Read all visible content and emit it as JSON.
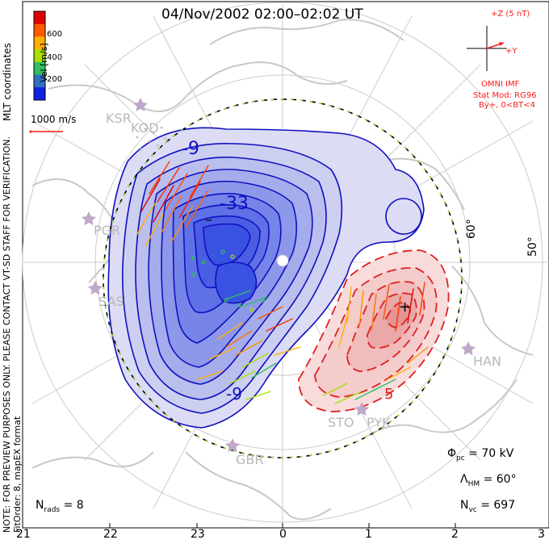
{
  "title": "04/Nov/2002 02:00–02:02 UT",
  "imf": {
    "z_label": "+Z (5 nT)",
    "y_label": "+Y",
    "source": "OMNI IMF",
    "stat_mod": "Stat Mod: RG96",
    "condition": "By+, 0<BT<4"
  },
  "colorbar": {
    "title": "Vel [m/s]",
    "ticks": [
      "600",
      "400",
      "200"
    ],
    "colors": [
      "#e00000",
      "#ff5a00",
      "#ffb000",
      "#a8e000",
      "#30c060",
      "#3070c0",
      "#1020e0"
    ]
  },
  "reference_vector": {
    "label": "1000 m/s"
  },
  "coordinates_label": "MLT coordinates",
  "notes": {
    "preview": "NOTE: FOR PREVIEW PURPOSES ONLY. PLEASE CONTACT VT-SD STAFF FOR VERIFICATION.",
    "fit": "FitOrder: 8, mapEX format"
  },
  "latitude_labels": [
    "60°",
    "50°"
  ],
  "contour_labels": {
    "neg_a": "-9",
    "neg_b": "-33",
    "neg_c": "-9",
    "pos_a": "5",
    "neg_min": "–",
    "pos_max": "+"
  },
  "sites": [
    "KSR",
    "KOD",
    "PGR",
    "SAS",
    "HAN",
    "STO",
    "PYK",
    "GBR"
  ],
  "mlt_labels": [
    "21",
    "22",
    "23",
    "0",
    "1",
    "2",
    "3"
  ],
  "stats": {
    "nrads_label": "N",
    "nrads_sub": "rads",
    "nrads_value": "= 8",
    "phi_label": "Φ",
    "phi_sub": "pc",
    "phi_value": "= 70 kV",
    "lambda_label": "Λ",
    "lambda_sub": "HM",
    "lambda_value": "= 60°",
    "nvc_label": "N",
    "nvc_sub": "vc",
    "nvc_value": "= 697"
  }
}
